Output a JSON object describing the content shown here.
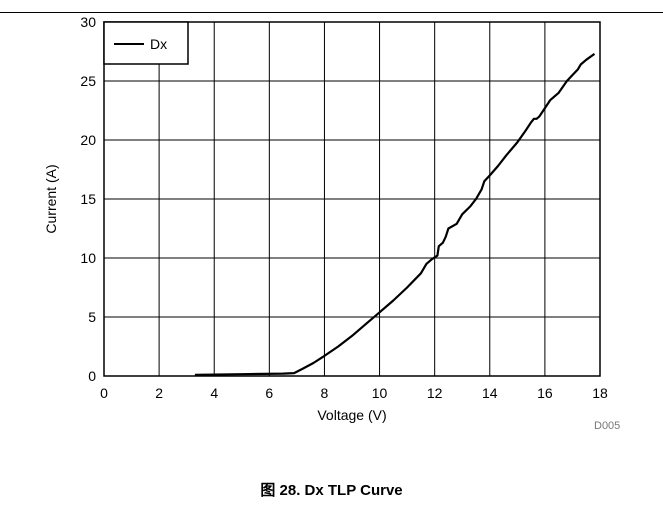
{
  "figure": {
    "caption": "图 28. Dx TLP Curve",
    "code": "D005"
  },
  "chart_data": {
    "type": "line",
    "xlabel": "Voltage (V)",
    "ylabel": "Current (A)",
    "xlim": [
      0,
      18
    ],
    "ylim": [
      0,
      30
    ],
    "x_ticks": [
      0,
      2,
      4,
      6,
      8,
      10,
      12,
      14,
      16,
      18
    ],
    "y_ticks": [
      0,
      5,
      10,
      15,
      20,
      25,
      30
    ],
    "grid": true,
    "legend_position": "top-left",
    "series": [
      {
        "name": "Dx",
        "color": "#000000",
        "x": [
          3.3,
          5.0,
          6.5,
          6.9,
          7.2,
          7.6,
          8.0,
          8.5,
          9.0,
          9.5,
          10.0,
          10.5,
          11.0,
          11.5,
          11.7,
          11.9,
          12.1,
          12.15,
          12.3,
          12.4,
          12.5,
          12.8,
          13.0,
          13.3,
          13.5,
          13.7,
          13.8,
          14.0,
          14.3,
          14.6,
          15.0,
          15.3,
          15.5,
          15.6,
          15.7,
          15.8,
          16.0,
          16.2,
          16.5,
          16.8,
          17.0,
          17.2,
          17.3,
          17.5,
          17.8
        ],
        "y": [
          0.1,
          0.15,
          0.2,
          0.25,
          0.6,
          1.1,
          1.7,
          2.5,
          3.4,
          4.4,
          5.4,
          6.4,
          7.5,
          8.7,
          9.5,
          9.9,
          10.2,
          11.0,
          11.3,
          11.8,
          12.5,
          12.9,
          13.7,
          14.4,
          15.0,
          15.8,
          16.5,
          17.0,
          17.8,
          18.7,
          19.8,
          20.8,
          21.5,
          21.8,
          21.8,
          22.0,
          22.7,
          23.4,
          24.0,
          25.0,
          25.5,
          26.0,
          26.4,
          26.8,
          27.3
        ]
      }
    ]
  }
}
